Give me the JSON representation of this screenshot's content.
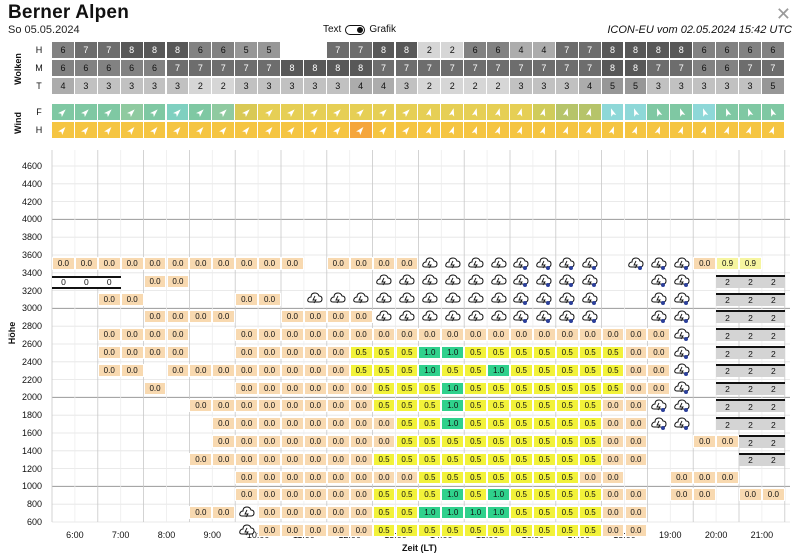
{
  "header": {
    "title": "Berner Alpen",
    "date": "So 05.05.2024",
    "toggle_left": "Text",
    "toggle_right": "Grafik",
    "model": "ICON-EU vom 02.05.2024 15:42 UTC",
    "close_icon": "close-icon"
  },
  "clouds": {
    "label": "Wolken",
    "rows": [
      {
        "label": "H",
        "values": [
          "6",
          "7",
          "7",
          "8",
          "8",
          "8",
          "6",
          "6",
          "5",
          "5",
          "",
          "",
          "7",
          "7",
          "8",
          "8",
          "2",
          "2",
          "6",
          "6",
          "4",
          "4",
          "7",
          "7",
          "8",
          "8",
          "8",
          "8",
          "6",
          "6",
          "6",
          "6"
        ]
      },
      {
        "label": "M",
        "values": [
          "6",
          "6",
          "6",
          "6",
          "6",
          "7",
          "7",
          "7",
          "7",
          "7",
          "8",
          "8",
          "8",
          "8",
          "7",
          "7",
          "7",
          "7",
          "7",
          "7",
          "7",
          "7",
          "7",
          "7",
          "8",
          "8",
          "7",
          "7",
          "6",
          "6",
          "7",
          "7"
        ]
      },
      {
        "label": "T",
        "values": [
          "4",
          "3",
          "3",
          "3",
          "3",
          "3",
          "2",
          "2",
          "3",
          "3",
          "3",
          "3",
          "3",
          "4",
          "4",
          "3",
          "2",
          "2",
          "2",
          "2",
          "3",
          "3",
          "3",
          "4",
          "5",
          "5",
          "3",
          "3",
          "3",
          "3",
          "3",
          "5"
        ]
      }
    ]
  },
  "wind": {
    "label": "Wind",
    "rows": [
      {
        "label": "F",
        "colors": [
          "#7fc8a3",
          "#7fc8a3",
          "#7fc8a3",
          "#8fcaa0",
          "#7fc8a3",
          "#7fd0c0",
          "#7fc8a3",
          "#8fcaa0",
          "#d9c955",
          "#e6cf55",
          "#e6cf55",
          "#e6cf55",
          "#e6cf55",
          "#e6cf55",
          "#e6cf55",
          "#e6cf55",
          "#e6cf55",
          "#e6cf55",
          "#e6cf55",
          "#e6cf55",
          "#e6cf55",
          "#d0cc5a",
          "#b6c46a",
          "#b6c46a",
          "#8ed8d8",
          "#8ed8d8",
          "#7fc8a3",
          "#7fc8a3",
          "#8ed8d8",
          "#7fc8a3",
          "#7fc8a3",
          "#7fc8a3"
        ]
      },
      {
        "label": "H",
        "colors": [
          "#f5c542",
          "#f5c542",
          "#f5c542",
          "#f5c542",
          "#f5c542",
          "#f5c542",
          "#f5c542",
          "#f5c542",
          "#f5c542",
          "#f5c542",
          "#f5c542",
          "#f5c542",
          "#f5c542",
          "#f5a63c",
          "#f5c542",
          "#f5c542",
          "#f5c542",
          "#f5c542",
          "#f5c542",
          "#f5c542",
          "#f5c542",
          "#f5c542",
          "#f5c542",
          "#f5c542",
          "#f5c542",
          "#f5c542",
          "#f5c542",
          "#f5c542",
          "#f5c542",
          "#f5c542",
          "#f5c542",
          "#f5c542"
        ]
      }
    ]
  },
  "chart_data": {
    "type": "heatmap",
    "ylabel": "Höhe",
    "xlabel": "Zeit (LT)",
    "y_ticks": [
      "4600",
      "4400",
      "4200",
      "4000",
      "3800",
      "3600",
      "3400",
      "3200",
      "3000",
      "2800",
      "2600",
      "2400",
      "2200",
      "2000",
      "1800",
      "1600",
      "1400",
      "1200",
      "1000",
      "800",
      "600"
    ],
    "x_ticks": [
      "6:00",
      "7:00",
      "8:00",
      "9:00",
      "10:00",
      "11:00",
      "12:00",
      "13:00",
      "14:00",
      "15:00",
      "16:00",
      "17:00",
      "18:00",
      "19:00",
      "20:00",
      "21:00"
    ],
    "rows": [
      {
        "alt": "3600",
        "cells": [
          "0.0",
          "0.0",
          "0.0",
          "0.0",
          "0.0",
          "0.0",
          "0.0",
          "0.0",
          "0.0",
          "0.0",
          "0.0",
          "",
          "0.0",
          "0.0",
          "0.0",
          "0.0",
          "C",
          "C",
          "C",
          "C",
          "CR",
          "CR",
          "CR",
          "CR",
          "",
          "CR",
          "CR",
          "CR",
          "0.0",
          "0.9",
          "0.9",
          ""
        ]
      },
      {
        "alt": "3400",
        "cells": [
          "",
          "",
          "",
          "",
          "0.0",
          "0.0",
          "",
          "",
          "",
          "",
          "",
          "",
          "",
          "",
          "C",
          "C",
          "C",
          "C",
          "C",
          "C",
          "CR",
          "CR",
          "CR",
          "CR",
          "",
          "",
          "CR",
          "CR",
          "",
          "",
          "",
          ""
        ]
      },
      {
        "alt": "3200",
        "cells": [
          "",
          "",
          "0.0",
          "0.0",
          "",
          "",
          "",
          "",
          "0.0",
          "0.0",
          "",
          "C",
          "C",
          "C",
          "C",
          "C",
          "C",
          "C",
          "C",
          "C",
          "CR",
          "CR",
          "CR",
          "CR",
          "",
          "",
          "CR",
          "CR",
          "",
          "",
          "",
          ""
        ]
      },
      {
        "alt": "3000",
        "cells": [
          "",
          "",
          "",
          "",
          "0.0",
          "0.0",
          "0.0",
          "0.0",
          "",
          "",
          "0.0",
          "0.0",
          "0.0",
          "0.0",
          "C",
          "C",
          "C",
          "C",
          "C",
          "C",
          "CR",
          "CR",
          "CR",
          "CR",
          "",
          "",
          "CR",
          "CR",
          "",
          "",
          "",
          ""
        ]
      },
      {
        "alt": "2800",
        "cells": [
          "",
          "",
          "0.0",
          "0.0",
          "0.0",
          "0.0",
          "",
          "",
          "0.0",
          "0.0",
          "0.0",
          "0.0",
          "0.0",
          "0.0",
          "0.0",
          "0.0",
          "0.0",
          "0.0",
          "0.0",
          "0.0",
          "0.0",
          "0.0",
          "0.0",
          "0.0",
          "0.0",
          "0.0",
          "0.0",
          "CR",
          "",
          "",
          "",
          ""
        ]
      },
      {
        "alt": "2600",
        "cells": [
          "",
          "",
          "0.0",
          "0.0",
          "0.0",
          "0.0",
          "",
          "",
          "0.0",
          "0.0",
          "0.0",
          "0.0",
          "0.0",
          "0.5",
          "0.5",
          "0.5",
          "1.0",
          "1.0",
          "0.5",
          "0.5",
          "0.5",
          "0.5",
          "0.5",
          "0.5",
          "0.5",
          "0.0",
          "0.0",
          "CR",
          "",
          "",
          "",
          ""
        ]
      },
      {
        "alt": "2400",
        "cells": [
          "",
          "",
          "0.0",
          "0.0",
          "",
          "0.0",
          "0.0",
          "0.0",
          "0.0",
          "0.0",
          "0.0",
          "0.0",
          "0.0",
          "0.5",
          "0.5",
          "0.5",
          "1.0",
          "0.5",
          "0.5",
          "1.0",
          "0.5",
          "0.5",
          "0.5",
          "0.5",
          "0.5",
          "0.0",
          "0.0",
          "CR",
          "",
          "",
          "",
          ""
        ]
      },
      {
        "alt": "2200",
        "cells": [
          "",
          "",
          "",
          "",
          "0.0",
          "",
          "",
          "",
          "0.0",
          "0.0",
          "0.0",
          "0.0",
          "0.0",
          "0.0",
          "0.5",
          "0.5",
          "0.5",
          "1.0",
          "0.5",
          "0.5",
          "0.5",
          "0.5",
          "0.5",
          "0.5",
          "0.5",
          "0.0",
          "0.0",
          "CR",
          "",
          "",
          "",
          ""
        ]
      },
      {
        "alt": "2000",
        "cells": [
          "",
          "",
          "",
          "",
          "",
          "",
          "0.0",
          "0.0",
          "0.0",
          "0.0",
          "0.0",
          "0.0",
          "0.0",
          "0.0",
          "0.5",
          "0.5",
          "0.5",
          "1.0",
          "0.5",
          "0.5",
          "0.5",
          "0.5",
          "0.5",
          "0.5",
          "0.0",
          "0.0",
          "CR",
          "CR",
          "",
          "",
          "",
          ""
        ]
      },
      {
        "alt": "1800",
        "cells": [
          "",
          "",
          "",
          "",
          "",
          "",
          "",
          "0.0",
          "0.0",
          "0.0",
          "0.0",
          "0.0",
          "0.0",
          "0.0",
          "0.0",
          "0.5",
          "0.5",
          "1.0",
          "0.5",
          "0.5",
          "0.5",
          "0.5",
          "0.5",
          "0.5",
          "0.0",
          "0.0",
          "CR",
          "CR",
          "",
          "",
          "",
          ""
        ]
      },
      {
        "alt": "1600",
        "cells": [
          "",
          "",
          "",
          "",
          "",
          "",
          "",
          "0.0",
          "0.0",
          "0.0",
          "0.0",
          "0.0",
          "0.0",
          "0.0",
          "0.0",
          "0.5",
          "0.5",
          "0.5",
          "0.5",
          "0.5",
          "0.5",
          "0.5",
          "0.5",
          "0.5",
          "0.0",
          "0.0",
          "",
          "",
          "0.0",
          "0.0",
          "",
          ""
        ]
      },
      {
        "alt": "1400",
        "cells": [
          "",
          "",
          "",
          "",
          "",
          "",
          "0.0",
          "0.0",
          "0.0",
          "0.0",
          "0.0",
          "0.0",
          "0.0",
          "0.0",
          "0.5",
          "0.5",
          "0.5",
          "0.5",
          "0.5",
          "0.5",
          "0.5",
          "0.5",
          "0.5",
          "0.5",
          "0.0",
          "0.0",
          "",
          "",
          "",
          "",
          "",
          ""
        ]
      },
      {
        "alt": "1200",
        "cells": [
          "",
          "",
          "",
          "",
          "",
          "",
          "",
          "",
          "0.0",
          "0.0",
          "0.0",
          "0.0",
          "0.0",
          "0.0",
          "0.0",
          "0.0",
          "0.5",
          "0.5",
          "0.5",
          "0.5",
          "0.5",
          "0.5",
          "0.5",
          "0.0",
          "0.0",
          "",
          "",
          "0.0",
          "0.0",
          "0.0",
          "",
          ""
        ]
      },
      {
        "alt": "1000",
        "cells": [
          "",
          "",
          "",
          "",
          "",
          "",
          "",
          "",
          "0.0",
          "0.0",
          "0.0",
          "0.0",
          "0.0",
          "0.0",
          "0.5",
          "0.5",
          "0.5",
          "1.0",
          "0.5",
          "1.0",
          "0.5",
          "0.5",
          "0.5",
          "0.5",
          "0.0",
          "0.0",
          "",
          "0.0",
          "0.0",
          "",
          "0.0",
          "0.0"
        ]
      },
      {
        "alt": "800",
        "cells": [
          "",
          "",
          "",
          "",
          "",
          "",
          "0.0",
          "0.0",
          "C",
          "0.0",
          "0.0",
          "0.0",
          "0.0",
          "0.0",
          "0.5",
          "0.5",
          "1.0",
          "1.0",
          "1.0",
          "1.0",
          "0.5",
          "0.5",
          "0.5",
          "0.5",
          "0.0",
          "0.0",
          "",
          "",
          "",
          "",
          "",
          ""
        ]
      },
      {
        "alt": "600",
        "cells": [
          "",
          "",
          "",
          "",
          "",
          "",
          "",
          "",
          "C",
          "0.0",
          "0.0",
          "0.0",
          "0.0",
          "0.0",
          "0.5",
          "0.5",
          "0.5",
          "0.5",
          "0.5",
          "0.5",
          "0.5",
          "0.5",
          "0.5",
          "0.5",
          "0.0",
          "0.0",
          "",
          "",
          "",
          "",
          "",
          ""
        ]
      }
    ],
    "special": {
      "top_clouds_label": "C",
      "bars_right": [
        "2",
        "2",
        "2"
      ],
      "bars_left": [
        "0",
        "0",
        "0"
      ]
    }
  }
}
